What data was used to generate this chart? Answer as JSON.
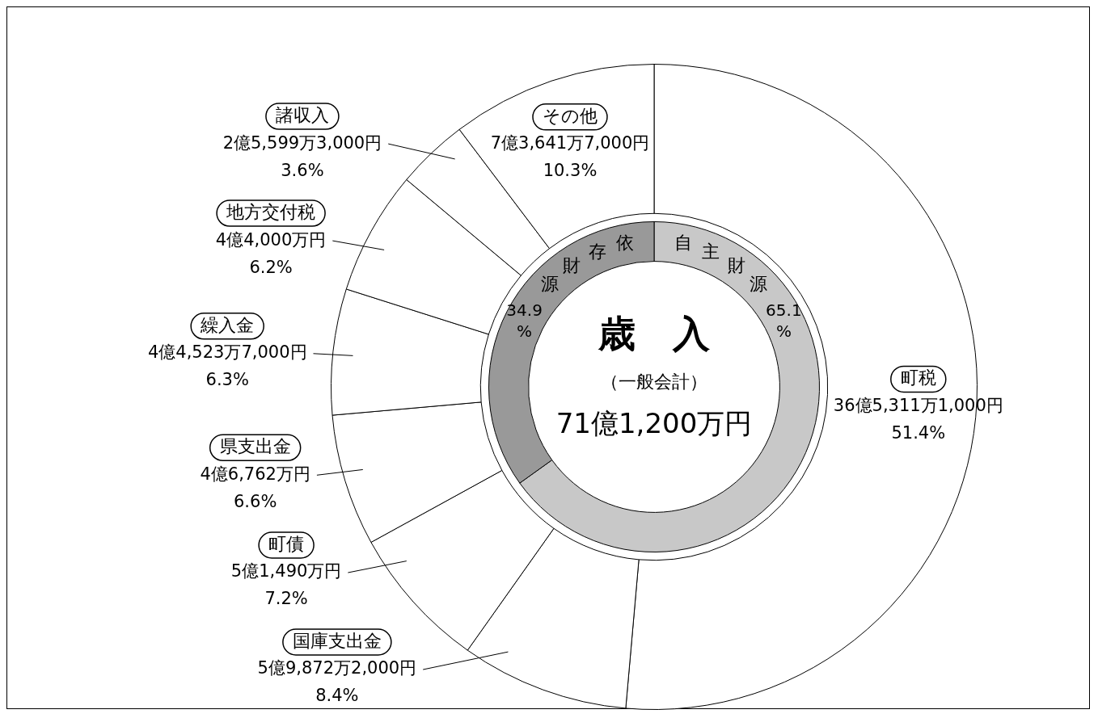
{
  "chart_data": [
    {
      "type": "donut",
      "title": "歳　入",
      "subtitle": "（一般会計）",
      "annotations": [
        "71億1,200万円"
      ],
      "categories": [
        "町税",
        "国庫支出金",
        "町債",
        "県支出金",
        "繰入金",
        "地方交付税",
        "諸収入",
        "その他"
      ],
      "values": [
        51.4,
        8.4,
        7.2,
        6.6,
        6.3,
        6.2,
        3.6,
        10.3
      ],
      "colors": [
        "#ffffff",
        "#ffffff",
        "#ffffff",
        "#ffffff",
        "#ffffff",
        "#ffffff",
        "#ffffff",
        "#ffffff"
      ],
      "value_labels": [
        "36億5,311万1,000円\n51.4%",
        "5億9,872万2,000円\n8.4%",
        "5億1,490万円\n7.2%",
        "4億6,762万円\n6.6%",
        "4億4,523万7,000円\n6.3%",
        "4億4,000万円\n6.2%",
        "2億5,599万3,000円\n3.6%",
        "7億3,641万7,000円\n10.3%"
      ]
    },
    {
      "type": "donut",
      "categories": [
        "自主財源",
        "依存財源"
      ],
      "values": [
        65.1,
        34.9
      ],
      "colors": [
        "#c8c8c8",
        "#999999"
      ],
      "value_labels": [
        "65.1%",
        "34.9%"
      ]
    }
  ]
}
